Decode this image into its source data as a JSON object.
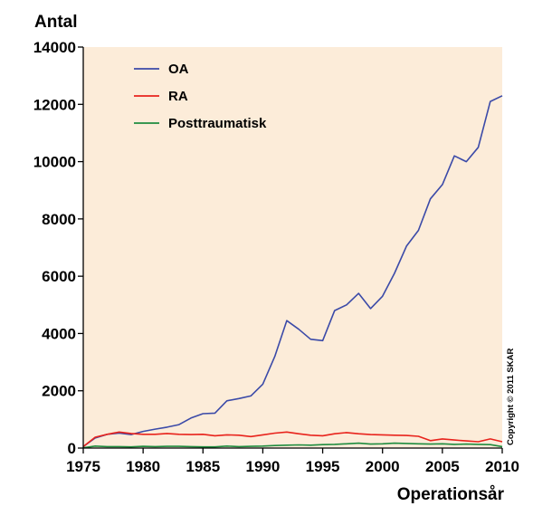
{
  "chart_data": {
    "type": "line",
    "ylabel": "Antal",
    "xlabel": "Operationsår",
    "xlim": [
      1975,
      2010
    ],
    "ylim": [
      0,
      14000
    ],
    "xticks": [
      "1975",
      "1980",
      "1985",
      "1990",
      "1995",
      "2000",
      "2005",
      "2010"
    ],
    "yticks": [
      "0",
      "2000",
      "4000",
      "6000",
      "8000",
      "10000",
      "12000",
      "14000"
    ],
    "grid": false,
    "legend_position": "top-left",
    "copyright": "Copyright © 2011 SKAR",
    "x": [
      1975,
      1976,
      1977,
      1978,
      1979,
      1980,
      1981,
      1982,
      1983,
      1984,
      1985,
      1986,
      1987,
      1988,
      1989,
      1990,
      1991,
      1992,
      1993,
      1994,
      1995,
      1996,
      1997,
      1998,
      1999,
      2000,
      2001,
      2002,
      2003,
      2004,
      2005,
      2006,
      2007,
      2008,
      2009,
      2010
    ],
    "series": [
      {
        "name": "OA",
        "color": "#3b4aa8",
        "values": [
          50,
          350,
          480,
          520,
          470,
          580,
          660,
          730,
          820,
          1050,
          1200,
          1220,
          1650,
          1730,
          1820,
          2230,
          3200,
          4450,
          4150,
          3800,
          3750,
          4800,
          5000,
          5400,
          4870,
          5300,
          6100,
          7050,
          7600,
          8700,
          9200,
          10200,
          10000,
          10500,
          12100,
          12300
        ]
      },
      {
        "name": "RA",
        "color": "#e8231c",
        "values": [
          50,
          380,
          480,
          560,
          510,
          480,
          480,
          510,
          480,
          470,
          480,
          430,
          460,
          450,
          400,
          460,
          520,
          560,
          500,
          450,
          430,
          500,
          540,
          500,
          470,
          460,
          450,
          440,
          410,
          260,
          320,
          280,
          250,
          220,
          320,
          220
        ]
      },
      {
        "name": "Posttraumatisk",
        "color": "#1e8c3e",
        "values": [
          10,
          70,
          50,
          50,
          40,
          60,
          50,
          60,
          60,
          50,
          40,
          40,
          70,
          50,
          60,
          70,
          90,
          100,
          110,
          100,
          120,
          130,
          150,
          170,
          140,
          150,
          170,
          160,
          150,
          140,
          150,
          130,
          140,
          130,
          120,
          50
        ]
      }
    ]
  }
}
